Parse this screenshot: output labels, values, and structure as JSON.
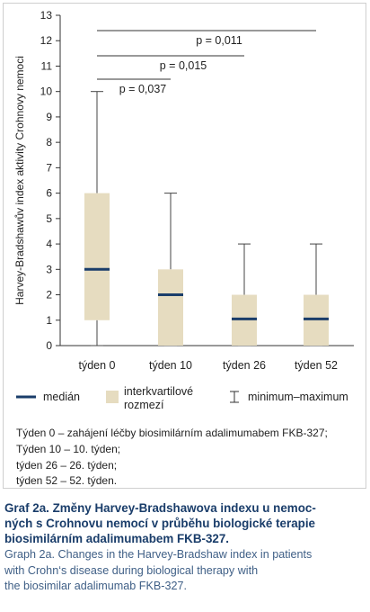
{
  "chart_data": {
    "type": "boxplot",
    "ylabel": "Harvey-Bradshawův index aktivity Crohnovy nemoci",
    "xlabel": "",
    "ylim": [
      0,
      13
    ],
    "yticks": [
      0,
      1,
      2,
      3,
      4,
      5,
      6,
      7,
      8,
      9,
      10,
      11,
      12,
      13
    ],
    "categories": [
      "týden 0",
      "týden 10",
      "týden 26",
      "týden 52"
    ],
    "boxes": [
      {
        "label": "týden 0",
        "min": 0,
        "q1": 1,
        "median": 3,
        "q3": 6,
        "max": 10
      },
      {
        "label": "týden 10",
        "min": 0,
        "q1": 0,
        "median": 2,
        "q3": 3,
        "max": 6
      },
      {
        "label": "týden 26",
        "min": 0,
        "q1": 0,
        "median": 1.05,
        "q3": 2,
        "max": 4
      },
      {
        "label": "týden 52",
        "min": 0,
        "q1": 0,
        "median": 1.05,
        "q3": 2,
        "max": 4
      }
    ],
    "significance": [
      {
        "from": "týden 0",
        "to": "týden 52",
        "label": "p = 0,011"
      },
      {
        "from": "týden 0",
        "to": "týden 26",
        "label": "p = 0,015"
      },
      {
        "from": "týden 0",
        "to": "týden 10",
        "label": "p = 0,037"
      }
    ],
    "legend": {
      "median": "medián",
      "iqr": [
        "interkvartilové",
        "rozmezí"
      ],
      "range": "minimum–maximum"
    },
    "colors": {
      "box_fill": "#e6dcc0",
      "median": "#1a3d6a",
      "whisker": "#444444"
    }
  },
  "notes": [
    "Týden 0 – zahájení léčby biosimilárním adalimumabem FKB-327;",
    "Týden 10 – 10. týden;",
    "týden 26 – 26. týden;",
    "týden 52 – 52. týden."
  ],
  "caption_cz": [
    "Graf 2a. Změny Harvey-Bradshawova indexu u nemoc-",
    "ných s Crohnovu nemocí v průběhu biologické terapie",
    "biosimilárním adalimumabem FKB-327."
  ],
  "caption_en": [
    "Graph 2a. Changes in the Harvey-Bradshaw index in patients",
    "with Crohn‘s disease during biological therapy with",
    "the biosimilar adalimumab FKB-327."
  ]
}
